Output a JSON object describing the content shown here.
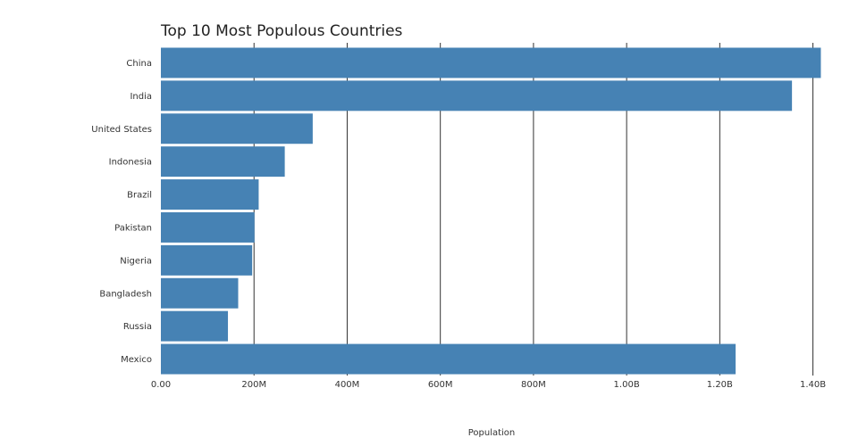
{
  "chart_data": {
    "type": "bar",
    "orientation": "horizontal",
    "title": "Top 10 Most Populous Countries",
    "xlabel": "Population",
    "ylabel": "",
    "xlim": [
      0,
      1420000000
    ],
    "x_ticks": [
      {
        "value": 0,
        "label": "0.00"
      },
      {
        "value": 200000000,
        "label": "200M"
      },
      {
        "value": 400000000,
        "label": "400M"
      },
      {
        "value": 600000000,
        "label": "600M"
      },
      {
        "value": 800000000,
        "label": "800M"
      },
      {
        "value": 1000000000,
        "label": "1.00B"
      },
      {
        "value": 1200000000,
        "label": "1.20B"
      },
      {
        "value": 1400000000,
        "label": "1.40B"
      }
    ],
    "categories": [
      "China",
      "India",
      "United States",
      "Indonesia",
      "Brazil",
      "Pakistan",
      "Nigeria",
      "Bangladesh",
      "Russia",
      "Mexico"
    ],
    "values": [
      1417000000,
      1355000000,
      326000000,
      266000000,
      210000000,
      201000000,
      196000000,
      166000000,
      144000000,
      1234000000
    ],
    "grid": true,
    "legend": "none",
    "colors": {
      "bar": "#4682b4",
      "grid": "#333333",
      "text": "#333333"
    }
  }
}
